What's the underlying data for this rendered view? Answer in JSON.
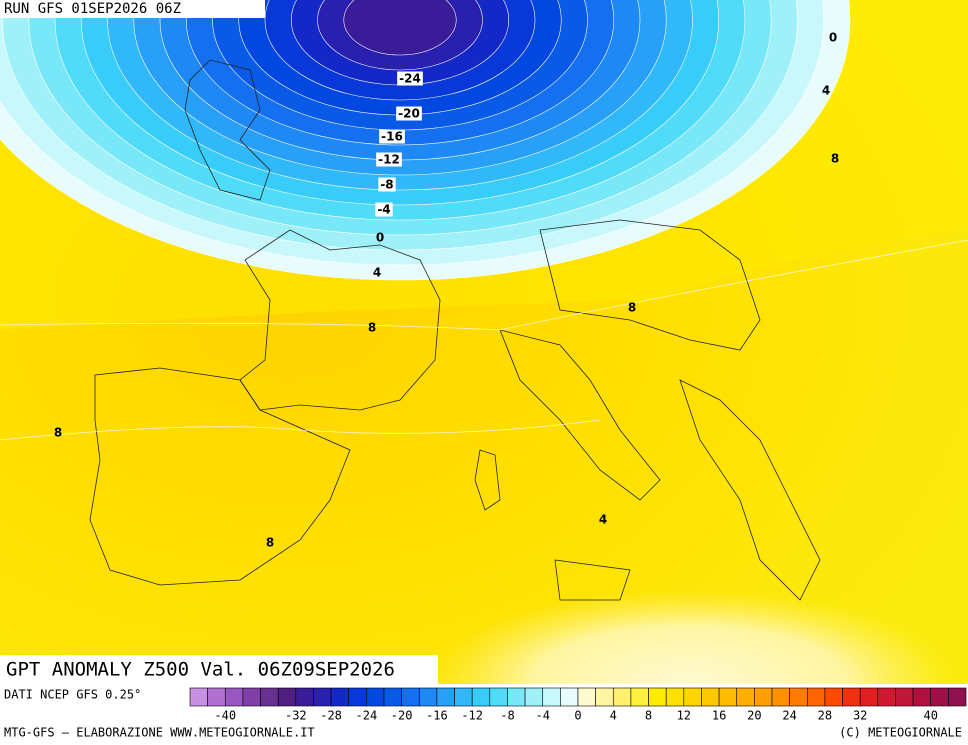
{
  "header": {
    "run": "RUN GFS 01SEP2026 06Z"
  },
  "map": {
    "contour_labels": [
      -24,
      -20,
      -16,
      -12,
      -8,
      -4,
      0,
      4,
      8,
      0,
      4,
      8,
      8,
      8,
      8,
      4
    ]
  },
  "footer": {
    "title": "GPT ANOMALY Z500 Val. 06Z09SEP2026",
    "source": "DATI NCEP GFS 0.25°",
    "credit_left": "MTG-GFS – ELABORAZIONE WWW.METEOGIORNALE.IT",
    "credit_right": "(C) METEOGIORNALE"
  },
  "legend": {
    "range": [
      -44,
      44
    ],
    "ticks": [
      -40,
      -32,
      -28,
      -24,
      -20,
      -16,
      -12,
      -8,
      -4,
      0,
      4,
      8,
      12,
      16,
      20,
      24,
      28,
      32,
      40
    ],
    "colors": [
      "#c890e0",
      "#b070d0",
      "#9858c0",
      "#8040a8",
      "#683090",
      "#502080",
      "#3a1c98",
      "#2a20b0",
      "#1428c8",
      "#0838d8",
      "#0048e0",
      "#0a5ae8",
      "#1470f0",
      "#1e88f5",
      "#28a0f8",
      "#30b8f8",
      "#38ccf8",
      "#50dcf8",
      "#78e8f8",
      "#a0f0fa",
      "#c8f8fc",
      "#e8fcfe",
      "#fffad0",
      "#fff5a0",
      "#fff070",
      "#fff040",
      "#ffeb00",
      "#ffe000",
      "#ffd400",
      "#ffc800",
      "#ffbc00",
      "#ffae00",
      "#ffa000",
      "#ff9000",
      "#ff7c00",
      "#ff6400",
      "#ff4a00",
      "#f03010",
      "#e02020",
      "#d01830",
      "#c01838",
      "#b01040",
      "#a01048",
      "#901050"
    ]
  }
}
